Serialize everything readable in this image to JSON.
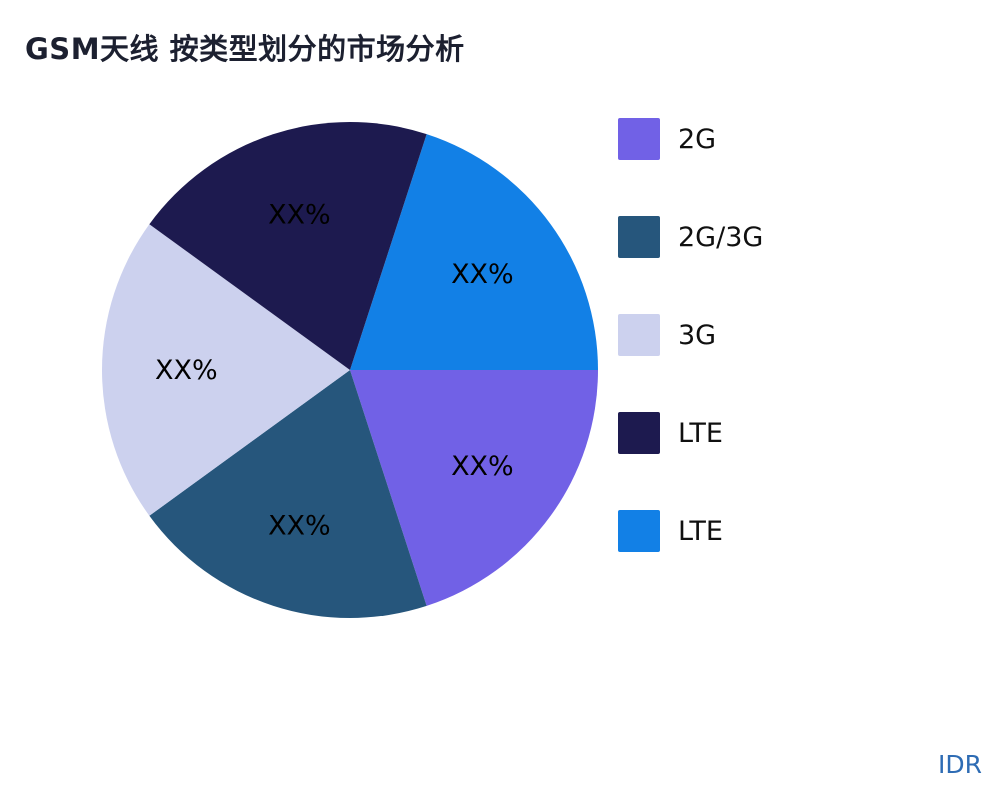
{
  "title": "GSM天线 按类型划分的市场分析",
  "watermark": "IDR",
  "chart_data": {
    "type": "pie",
    "title": "GSM天线 按类型划分的市场分析",
    "start_angle_deg": 18,
    "value_label_text": "XX%",
    "slices": [
      {
        "label": "LTE",
        "value": 20,
        "display_label": "XX%",
        "color": "#1280e6"
      },
      {
        "label": "2G",
        "value": 20,
        "display_label": "XX%",
        "color": "#7161e6"
      },
      {
        "label": "2G/3G",
        "value": 20,
        "display_label": "XX%",
        "color": "#26567c"
      },
      {
        "label": "3G",
        "value": 20,
        "display_label": "XX%",
        "color": "#ccd1ee"
      },
      {
        "label": "LTE",
        "value": 20,
        "display_label": "XX%",
        "color": "#1d1a4f"
      }
    ],
    "legend_position": "right",
    "legend": [
      {
        "label": "2G",
        "color": "#7161e6"
      },
      {
        "label": "2G/3G",
        "color": "#26567c"
      },
      {
        "label": "3G",
        "color": "#ccd1ee"
      },
      {
        "label": "LTE",
        "color": "#1d1a4f"
      },
      {
        "label": "LTE",
        "color": "#1280e6"
      }
    ]
  }
}
